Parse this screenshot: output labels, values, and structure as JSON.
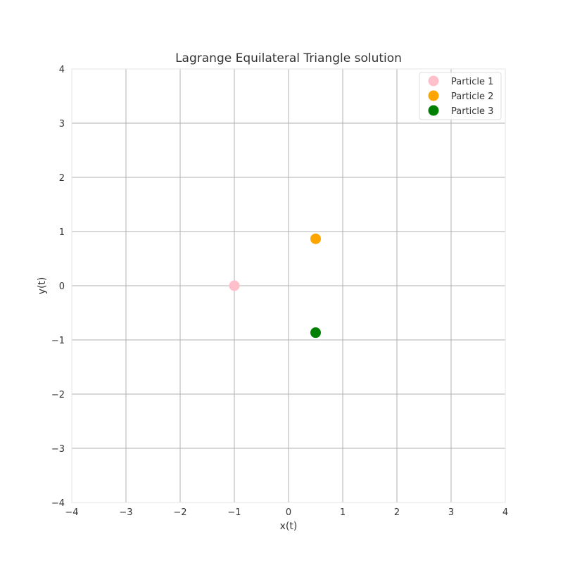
{
  "chart_data": {
    "type": "scatter",
    "title": "Lagrange Equilateral Triangle solution",
    "xlabel": "x(t)",
    "ylabel": "y(t)",
    "xlim": [
      -4,
      4
    ],
    "ylim": [
      -4,
      4
    ],
    "xticks": [
      -4,
      -3,
      -2,
      -1,
      0,
      1,
      2,
      3,
      4
    ],
    "yticks": [
      -4,
      -3,
      -2,
      -1,
      0,
      1,
      2,
      3,
      4
    ],
    "xtick_labels": [
      "−4",
      "−3",
      "−2",
      "−1",
      "0",
      "1",
      "2",
      "3",
      "4"
    ],
    "ytick_labels": [
      "−4",
      "−3",
      "−2",
      "−1",
      "0",
      "1",
      "2",
      "3",
      "4"
    ],
    "grid": true,
    "legend_position": "top-right",
    "series": [
      {
        "name": "Particle 1",
        "color": "#ffc0cb",
        "x": [
          -1.0
        ],
        "y": [
          0.0
        ]
      },
      {
        "name": "Particle 2",
        "color": "#ffa500",
        "x": [
          0.5
        ],
        "y": [
          0.866
        ]
      },
      {
        "name": "Particle 3",
        "color": "#008000",
        "x": [
          0.5
        ],
        "y": [
          -0.866
        ]
      }
    ]
  }
}
